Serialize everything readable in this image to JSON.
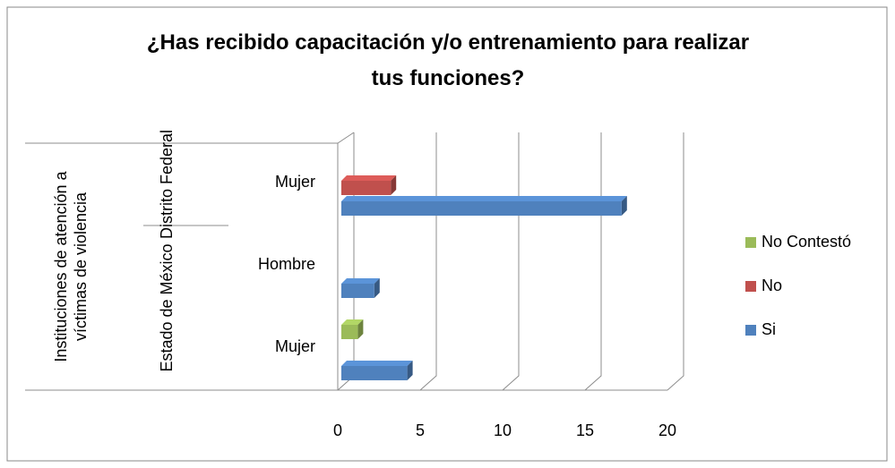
{
  "chart_data": {
    "type": "bar3d_horizontal",
    "title": "¿Has recibido capacitación y/o entrenamiento para realizar tus funciones?",
    "super_group": "Instituciones de atención a víctimas de violencia",
    "groups": [
      {
        "label": "Distrito Federal",
        "categories": [
          "Mujer"
        ]
      },
      {
        "label": "Estado de México",
        "categories": [
          "Hombre",
          "Mujer"
        ]
      }
    ],
    "series": [
      {
        "name": "No Contestó",
        "color": "#9bbb59",
        "values": [
          null,
          null,
          1
        ]
      },
      {
        "name": "No",
        "color": "#c0504d",
        "values": [
          3,
          null,
          null
        ]
      },
      {
        "name": "Si",
        "color": "#4f81bd",
        "values": [
          17,
          2,
          4
        ]
      }
    ],
    "xlim": [
      0,
      20
    ],
    "xticks": [
      0,
      5,
      10,
      15,
      20
    ],
    "grid": true,
    "legend": "right"
  }
}
